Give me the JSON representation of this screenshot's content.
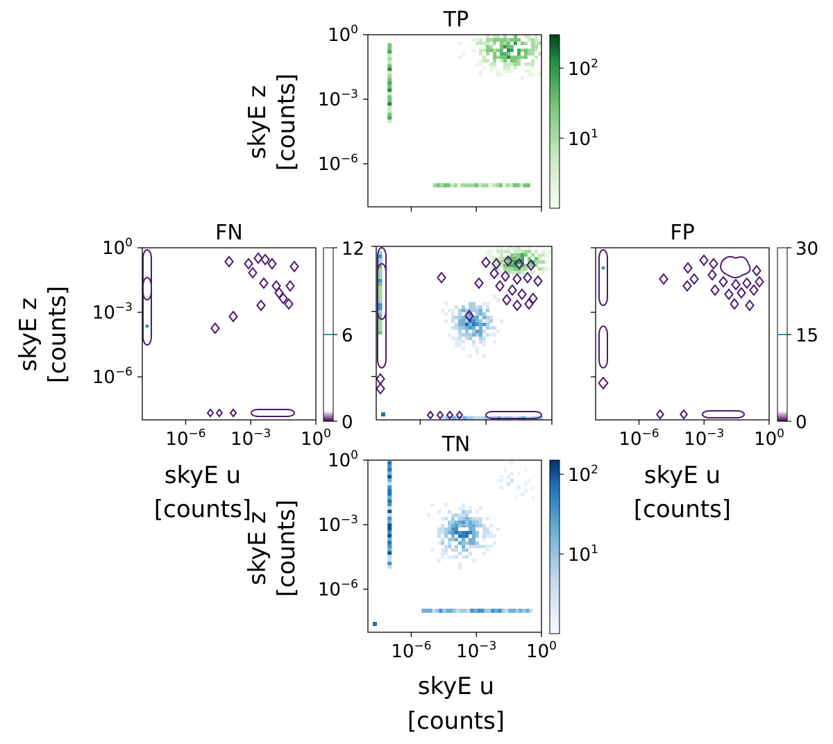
{
  "chart_data": [
    {
      "type": "heatmap",
      "panel": "TP",
      "title": "TP",
      "ylabel": [
        "skyE z",
        "[counts]"
      ],
      "xlabel": "",
      "scale": "log",
      "xlim": [
        1e-08,
        1
      ],
      "ylim": [
        1e-08,
        1
      ],
      "yticks": [
        {
          "base": "10",
          "exp": "0"
        },
        {
          "base": "10",
          "exp": "−3"
        },
        {
          "base": "10",
          "exp": "−6"
        }
      ],
      "colormap": "Greens",
      "colorbar": {
        "scale": "log",
        "ticks": [
          {
            "base": "10",
            "exp": "2"
          },
          {
            "base": "10",
            "exp": "1"
          }
        ],
        "max": 300
      },
      "clusters": [
        {
          "u": 0.03,
          "z": 0.25,
          "density": 300
        },
        {
          "u": 1e-07,
          "z": 0.01,
          "density": 40
        },
        {
          "u": 0.02,
          "z": 1e-07,
          "density": 30
        }
      ]
    },
    {
      "type": "contour",
      "panel": "FN",
      "title": "FN",
      "ylabel": [
        "skyE z",
        "[counts]"
      ],
      "xlabel": [
        "skyE u",
        "[counts]"
      ],
      "scale": "log",
      "xlim": [
        1e-08,
        1
      ],
      "ylim": [
        1e-08,
        1
      ],
      "xticks": [
        {
          "base": "10",
          "exp": "−6"
        },
        {
          "base": "10",
          "exp": "−3"
        },
        {
          "base": "10",
          "exp": "0"
        }
      ],
      "yticks": [
        {
          "base": "10",
          "exp": "0"
        },
        {
          "base": "10",
          "exp": "−3"
        },
        {
          "base": "10",
          "exp": "−6"
        }
      ],
      "colorbar": {
        "scale": "linear",
        "ticks": [
          "0",
          "6",
          "12"
        ],
        "range": [
          0,
          12
        ]
      },
      "contour_color": "#4b1a6e"
    },
    {
      "type": "contour",
      "panel": "center overlay",
      "title": "",
      "scale": "log",
      "xlim": [
        1e-08,
        1
      ],
      "ylim": [
        1e-08,
        1
      ],
      "layers": [
        "TP",
        "TN",
        "FN contours",
        "FP contours"
      ]
    },
    {
      "type": "contour",
      "panel": "FP",
      "title": "FP",
      "xlabel": [
        "skyE u",
        "[counts]"
      ],
      "scale": "log",
      "xlim": [
        1e-08,
        1
      ],
      "ylim": [
        1e-08,
        1
      ],
      "xticks": [
        {
          "base": "10",
          "exp": "−6"
        },
        {
          "base": "10",
          "exp": "−3"
        },
        {
          "base": "10",
          "exp": "0"
        }
      ],
      "colorbar": {
        "scale": "linear",
        "ticks": [
          "0",
          "15",
          "30"
        ],
        "range": [
          0,
          30
        ]
      },
      "contour_color": "#4b1a6e"
    },
    {
      "type": "heatmap",
      "panel": "TN",
      "title": "TN",
      "ylabel": [
        "skyE z",
        "[counts]"
      ],
      "xlabel": [
        "skyE u",
        "[counts]"
      ],
      "scale": "log",
      "xlim": [
        1e-08,
        1
      ],
      "ylim": [
        1e-08,
        1
      ],
      "xticks": [
        {
          "base": "10",
          "exp": "−6"
        },
        {
          "base": "10",
          "exp": "−3"
        },
        {
          "base": "10",
          "exp": "0"
        }
      ],
      "yticks": [
        {
          "base": "10",
          "exp": "0"
        },
        {
          "base": "10",
          "exp": "−3"
        },
        {
          "base": "10",
          "exp": "−6"
        }
      ],
      "colormap": "Blues",
      "colorbar": {
        "scale": "log",
        "ticks": [
          {
            "base": "10",
            "exp": "2"
          },
          {
            "base": "10",
            "exp": "1"
          }
        ],
        "max": 150
      },
      "clusters": [
        {
          "u": 0.0002,
          "z": 0.0005,
          "density": 120
        },
        {
          "u": 1e-07,
          "z": 0.005,
          "density": 60
        },
        {
          "u": 0.0003,
          "z": 1e-07,
          "density": 30
        },
        {
          "u": 0.05,
          "z": 0.1,
          "density": 8
        }
      ]
    }
  ]
}
